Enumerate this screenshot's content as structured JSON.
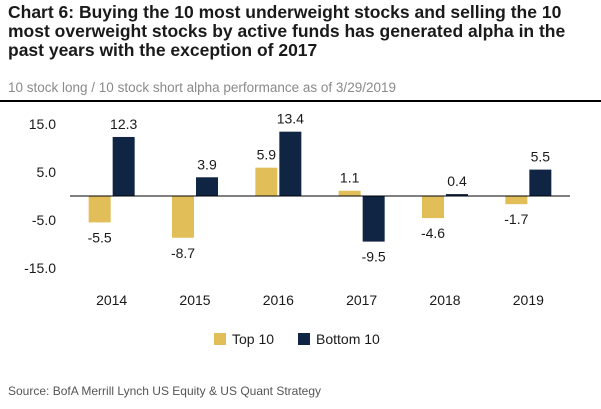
{
  "title": "Chart 6: Buying the 10 most underweight stocks and selling the 10 most overweight stocks by active funds has generated alpha in the past years with the exception of 2017",
  "subtitle": "10 stock long / 10 stock short alpha performance as of 3/29/2019",
  "source": "Source: BofA Merrill Lynch US Equity & US Quant Strategy",
  "colors": {
    "top10": "#E2BE58",
    "bottom10": "#102544",
    "axis": "#000000",
    "text": "#1a1a1a"
  },
  "chart_data": {
    "type": "bar",
    "categories": [
      "2014",
      "2015",
      "2016",
      "2017",
      "2018",
      "2019"
    ],
    "series": [
      {
        "name": "Top 10",
        "values": [
          -5.5,
          -8.7,
          5.9,
          1.1,
          -4.6,
          -1.7
        ],
        "labels": [
          "-5.5",
          "-8.7",
          "5.9",
          "1.1",
          "-4.6",
          "-1.7"
        ]
      },
      {
        "name": "Bottom 10",
        "values": [
          12.3,
          3.9,
          13.4,
          -9.5,
          0.4,
          5.5
        ],
        "labels": [
          "12.3",
          "3.9",
          "13.4",
          "-9.5",
          "0.4",
          "5.5"
        ]
      }
    ],
    "yticks": [
      "15.0",
      "5.0",
      "-5.0",
      "-15.0"
    ],
    "ytick_values": [
      15,
      5,
      -5,
      -15
    ],
    "ylim": [
      -15,
      15
    ],
    "legend_position": "bottom",
    "grid": false
  }
}
